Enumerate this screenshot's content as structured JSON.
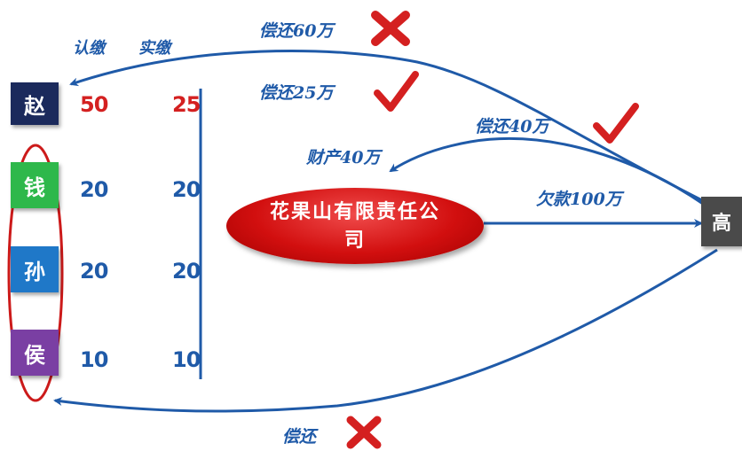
{
  "header": {
    "subscribed_label": "认缴",
    "paid_label": "实缴"
  },
  "shareholders": [
    {
      "name": "赵",
      "subscribed": "50",
      "paid": "25",
      "color": "#1b2a5c",
      "value_color": "#d42020"
    },
    {
      "name": "钱",
      "subscribed": "20",
      "paid": "20",
      "color": "#2eb84b",
      "value_color": "#1f5aa8"
    },
    {
      "name": "孙",
      "subscribed": "20",
      "paid": "20",
      "color": "#1f78c8",
      "value_color": "#1f5aa8"
    },
    {
      "name": "侯",
      "subscribed": "10",
      "paid": "10",
      "color": "#7a3fa3",
      "value_color": "#1f5aa8"
    }
  ],
  "company": {
    "name": "花果山有限责任公司"
  },
  "creditor": {
    "name": "高",
    "color": "#4a4a4a"
  },
  "arrows": {
    "repay_60": "偿还60万",
    "repay_25": "偿还25万",
    "repay_40": "偿还40万",
    "property_40": "财产40万",
    "debt_100": "欠款100万",
    "repay_bottom": "偿还"
  },
  "colors": {
    "arrow": "#1f5aa8",
    "check": "#d42020",
    "cross": "#d42020"
  }
}
